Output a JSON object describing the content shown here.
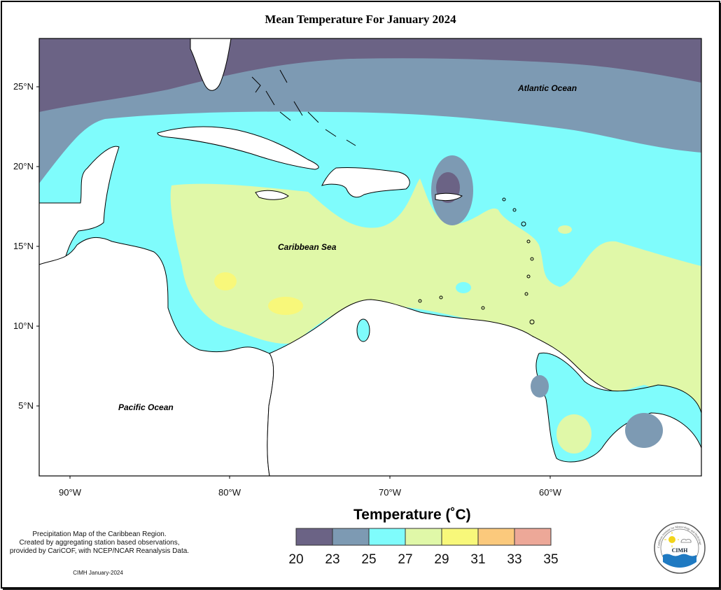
{
  "title": "Mean Temperature For January 2024",
  "axes": {
    "y_ticks": [
      "25°N",
      "20°N",
      "15°N",
      "10°N",
      "5°N"
    ],
    "x_ticks": [
      "90°W",
      "80°W",
      "70°W",
      "60°W"
    ]
  },
  "labels": {
    "atlantic": "Atlantic Ocean",
    "caribbean": "Caribbean Sea",
    "pacific": "Pacific Ocean"
  },
  "legend": {
    "title": "Temperature (˚C)",
    "ticks": [
      "20",
      "23",
      "25",
      "27",
      "29",
      "31",
      "33",
      "35"
    ],
    "colors": [
      "#6b6385",
      "#7d9ab3",
      "#7ffcfc",
      "#e0f8a8",
      "#f8f87a",
      "#fbc97c",
      "#eda898"
    ]
  },
  "note": {
    "line1": "Precipitation Map of the Caribbean Region.",
    "line2": "Created by aggregating station based observations,",
    "line3": "provided by CariCOF, with NCEP/NCAR Reanalysis Data."
  },
  "footer": "CIMH January-2024",
  "logo": {
    "text": "CIMH",
    "ring_text": "Caribbean Institute for Meteorology and Hydrology"
  }
}
